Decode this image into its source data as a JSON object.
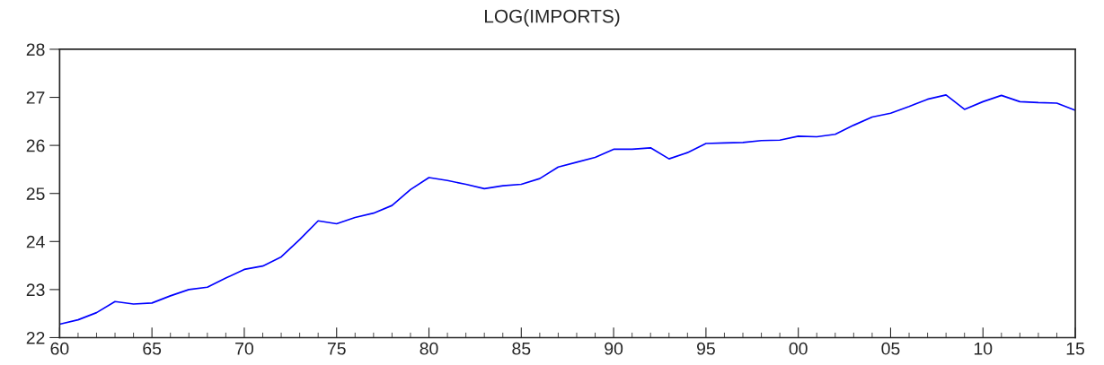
{
  "chart_data": {
    "type": "line",
    "title": "LOG(IMPORTS)",
    "x": [
      1960,
      1961,
      1962,
      1963,
      1964,
      1965,
      1966,
      1967,
      1968,
      1969,
      1970,
      1971,
      1972,
      1973,
      1974,
      1975,
      1976,
      1977,
      1978,
      1979,
      1980,
      1981,
      1982,
      1983,
      1984,
      1985,
      1986,
      1987,
      1988,
      1989,
      1990,
      1991,
      1992,
      1993,
      1994,
      1995,
      1996,
      1997,
      1998,
      1999,
      2000,
      2001,
      2002,
      2003,
      2004,
      2005,
      2006,
      2007,
      2008,
      2009,
      2010,
      2011,
      2012,
      2013,
      2014,
      2015
    ],
    "series": [
      {
        "color": "#0000ff",
        "values": [
          22.28,
          22.37,
          22.52,
          22.75,
          22.7,
          22.72,
          22.87,
          23.0,
          23.05,
          23.24,
          23.42,
          23.49,
          23.68,
          24.04,
          24.43,
          24.37,
          24.5,
          24.59,
          24.75,
          25.08,
          25.33,
          25.27,
          25.19,
          25.1,
          25.16,
          25.19,
          25.31,
          25.55,
          25.65,
          25.75,
          25.92,
          25.92,
          25.95,
          25.72,
          25.85,
          26.04,
          26.05,
          26.06,
          26.1,
          26.11,
          26.19,
          26.18,
          26.23,
          26.42,
          26.59,
          26.67,
          26.81,
          26.96,
          27.05,
          26.75,
          26.91,
          27.04,
          26.91,
          26.89,
          26.88,
          26.73
        ]
      }
    ],
    "xlim": [
      1960,
      2015
    ],
    "xticks": [
      {
        "value": 1960,
        "label": "60"
      },
      {
        "value": 1965,
        "label": "65"
      },
      {
        "value": 1970,
        "label": "70"
      },
      {
        "value": 1975,
        "label": "75"
      },
      {
        "value": 1980,
        "label": "80"
      },
      {
        "value": 1985,
        "label": "85"
      },
      {
        "value": 1990,
        "label": "90"
      },
      {
        "value": 1995,
        "label": "95"
      },
      {
        "value": 2000,
        "label": "00"
      },
      {
        "value": 2005,
        "label": "05"
      },
      {
        "value": 2010,
        "label": "10"
      },
      {
        "value": 2015,
        "label": "15"
      }
    ],
    "ylim": [
      22,
      28
    ],
    "yticks": [
      22,
      23,
      24,
      25,
      26,
      27,
      28
    ],
    "grid": false,
    "legend": false,
    "marker": "none",
    "line_style": "solid"
  }
}
